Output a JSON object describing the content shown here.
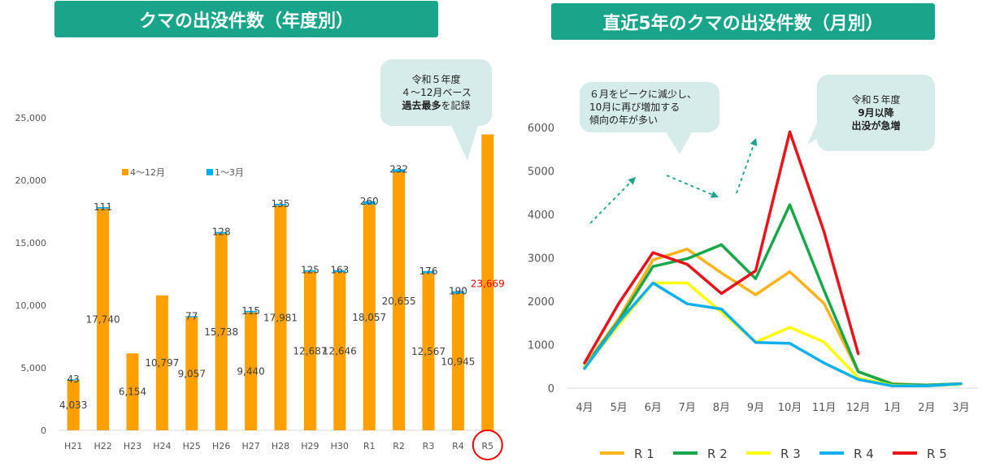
{
  "left_title": "クマの出没件数（年度別）",
  "right_title": "直近5年のクマの出没件数（月別）",
  "left_note": {
    "line1": "令和５年度",
    "line2": "４～12月ベース",
    "line3_bold": "過去最多",
    "line3_rest": "を記録"
  },
  "mid_note": {
    "line1": "６月をピークに減少し、",
    "line2": "10月に再び増加する",
    "line3": "傾向の年が多い"
  },
  "right_note": {
    "line1": "令和５年度",
    "line2": "9月以降",
    "line3": "出没が急増"
  },
  "colors": {
    "banner": "#18a589",
    "bar": "#ffa000",
    "bar_q": "#00b0f0",
    "r1": "#ffb31a",
    "r2": "#17a84a",
    "r3": "#ffff00",
    "r4": "#0fb0ec",
    "r5": "#e8141c",
    "highlight": "#ff0000",
    "arrow": "#18a589"
  },
  "chart_data": [
    {
      "type": "bar",
      "title": "クマの出没件数（年度別）",
      "categories": [
        "H21",
        "H22",
        "H23",
        "H24",
        "H25",
        "H26",
        "H27",
        "H28",
        "H29",
        "H30",
        "R1",
        "R2",
        "R3",
        "R4",
        "R5"
      ],
      "series": [
        {
          "name": "4～12月",
          "values": [
            4033,
            17740,
            6154,
            10797,
            9057,
            15738,
            9440,
            17981,
            12687,
            12646,
            18057,
            20655,
            12567,
            10945,
            23669
          ]
        },
        {
          "name": "1～3月",
          "values": [
            43,
            111,
            null,
            null,
            77,
            128,
            115,
            135,
            125,
            163,
            260,
            232,
            176,
            190,
            null
          ]
        }
      ],
      "value_labels": [
        "4,033",
        "17,740",
        "6,154",
        "10,797",
        "9,057",
        "15,738",
        "9,440",
        "17,981",
        "12,687",
        "12,646",
        "18,057",
        "20,655",
        "12,567",
        "10,945",
        "23,669"
      ],
      "q_labels": [
        "43",
        "111",
        "",
        "",
        "77",
        "128",
        "115",
        "135",
        "125",
        "163",
        "260",
        "232",
        "176",
        "190",
        ""
      ],
      "ylim": [
        0,
        25000
      ],
      "yticks": [
        0,
        5000,
        10000,
        15000,
        20000,
        25000
      ],
      "ytick_labels": [
        "0",
        "5,000",
        "10,000",
        "15,000",
        "20,000",
        "25,000"
      ],
      "legend": [
        "4～12月",
        "1～3月"
      ],
      "highlight": "R5"
    },
    {
      "type": "line",
      "title": "直近5年のクマの出没件数（月別）",
      "categories": [
        "4月",
        "5月",
        "6月",
        "7月",
        "8月",
        "9月",
        "10月",
        "11月",
        "12月",
        "1月",
        "2月",
        "3月"
      ],
      "ylim": [
        0,
        6000
      ],
      "yticks": [
        0,
        1000,
        2000,
        3000,
        4000,
        5000,
        6000
      ],
      "series": [
        {
          "name": "R1",
          "values": [
            500,
            1600,
            2950,
            3200,
            2650,
            2150,
            2680,
            1950,
            380,
            100,
            70,
            100
          ]
        },
        {
          "name": "R2",
          "values": [
            480,
            1550,
            2800,
            2980,
            3300,
            2520,
            4220,
            2250,
            380,
            90,
            70,
            100
          ]
        },
        {
          "name": "R3",
          "values": [
            480,
            1450,
            2420,
            2420,
            1750,
            1060,
            1400,
            1060,
            240,
            60,
            50,
            90
          ]
        },
        {
          "name": "R4",
          "values": [
            450,
            1520,
            2420,
            1940,
            1820,
            1050,
            1030,
            580,
            200,
            50,
            50,
            100
          ]
        },
        {
          "name": "R5",
          "values": [
            580,
            1950,
            3120,
            2850,
            2180,
            2700,
            5900,
            3600,
            790,
            null,
            null,
            null
          ]
        }
      ],
      "legend": [
        "R1",
        "R2",
        "R3",
        "R4",
        "R5"
      ]
    }
  ]
}
